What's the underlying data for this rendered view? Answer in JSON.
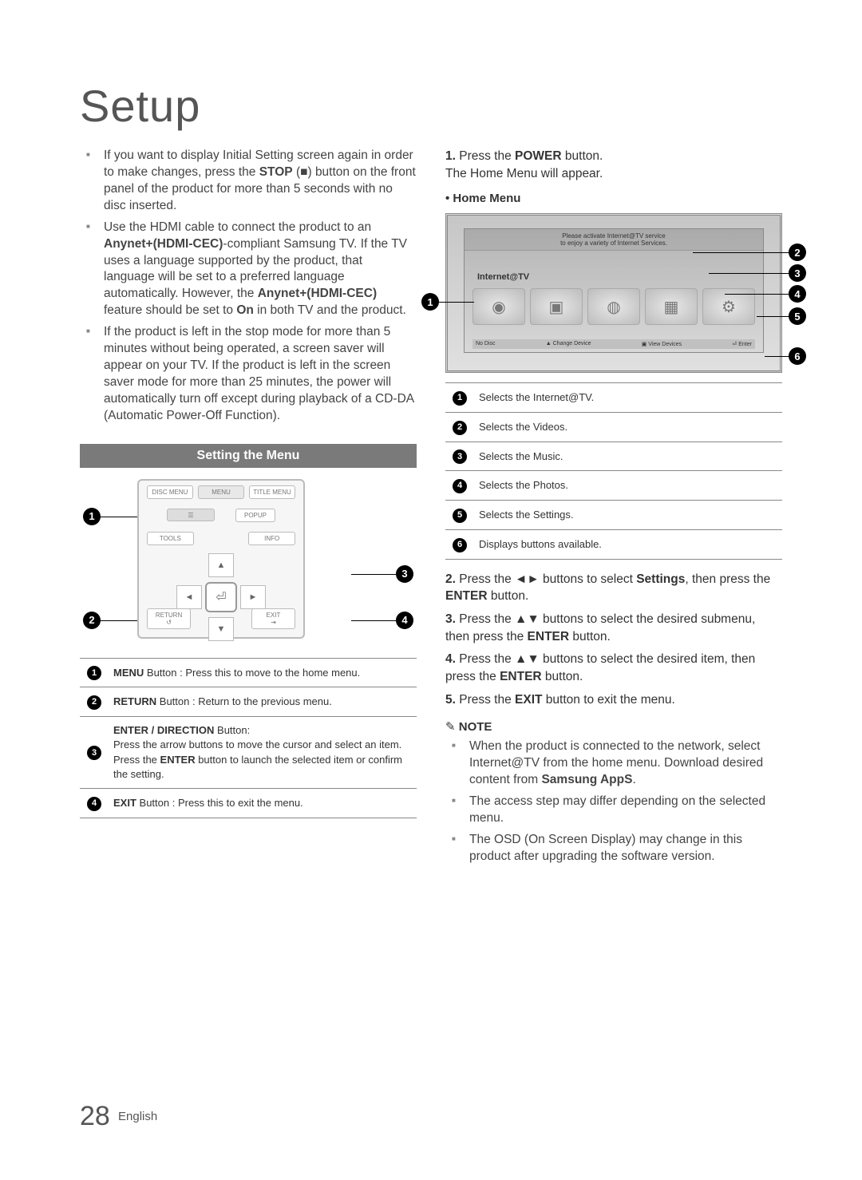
{
  "page": {
    "title": "Setup",
    "number": "28",
    "language": "English"
  },
  "left": {
    "bullets": [
      "If you want to display Initial Setting screen again in order to make changes, press the <b>STOP</b> (■) button on the front panel of the product for more than 5 seconds with no disc inserted.",
      "Use the HDMI cable to connect the product to an <b>Anynet+(HDMI-CEC)</b>-compliant Samsung TV. If the TV uses a language supported by the product, that language will be set to a preferred language automatically. However, the <b>Anynet+(HDMI-CEC)</b> feature should be set to <b>On</b> in both TV and the product.",
      "If the product is left in the stop mode for more than 5 minutes without being operated, a screen saver will appear on your TV. If the product is left in the screen saver mode for more than 25 minutes, the power will automatically turn off except during playback of a CD-DA (Automatic Power-Off Function)."
    ],
    "section_bar": "Setting the Menu",
    "remote_labels": {
      "row1": [
        "DISC MENU",
        "MENU",
        "TITLE MENU"
      ],
      "row1b": "POPUP",
      "row2": [
        "TOOLS",
        "INFO"
      ],
      "row3": [
        "RETURN",
        "EXIT"
      ]
    },
    "remote_table": [
      "<b>MENU</b> Button : Press this to move to the home menu.",
      "<b>RETURN</b> Button : Return to the previous menu.",
      "<b>ENTER / DIRECTION</b> Button:<br>Press the arrow buttons to move the cursor and select an item.<br>Press the <b>ENTER</b> button to launch the selected item or confirm the setting.",
      "<b>EXIT</b> Button : Press this to exit the menu."
    ]
  },
  "right": {
    "step1": "Press the <b>POWER</b> button.<br>The Home Menu will appear.",
    "home_menu_label": "Home Menu",
    "tv": {
      "banner1": "Please activate Internet@TV service",
      "banner2": "to enjoy a variety of Internet Services.",
      "label": "Internet@TV",
      "footer": [
        "No Disc",
        "▲ Change Device",
        "▣ View Devices",
        "⏎ Enter"
      ]
    },
    "home_table": [
      "Selects the Internet@TV.",
      "Selects the Videos.",
      "Selects the Music.",
      "Selects the Photos.",
      "Selects the Settings.",
      "Displays buttons available."
    ],
    "steps2to5": [
      "Press the ◄► buttons to select <b>Settings</b>, then press the <b>ENTER</b> button.",
      "Press the ▲▼ buttons to select the desired submenu, then press the <b>ENTER</b> button.",
      "Press the ▲▼ buttons to select the desired item, then press the <b>ENTER</b> button.",
      "Press the <b>EXIT</b> button to exit the menu."
    ],
    "note_label": "NOTE",
    "notes": [
      "When the product is connected to the network, select Internet@TV from the home menu. Download desired content from <b>Samsung AppS</b>.",
      "The access step may differ depending on the selected menu.",
      "The OSD (On Screen Display) may change in this product after upgrading the software version."
    ]
  }
}
